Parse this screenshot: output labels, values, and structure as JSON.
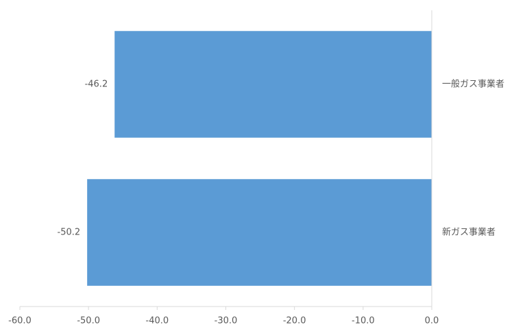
{
  "chart_data": {
    "type": "hbar",
    "categories": [
      "一般ガス事業者",
      "新ガス事業者"
    ],
    "values": [
      -46.2,
      -50.2
    ],
    "color": "#5b9bd5",
    "xlim": [
      -60,
      0
    ],
    "xticks": [
      {
        "value": -60,
        "label": "-60.0"
      },
      {
        "value": -50,
        "label": "-50.0"
      },
      {
        "value": -40,
        "label": "-40.0"
      },
      {
        "value": -30,
        "label": "-30.0"
      },
      {
        "value": -20,
        "label": "-20.0"
      },
      {
        "value": -10,
        "label": "-10.0"
      },
      {
        "value": 0,
        "label": "0.0"
      }
    ],
    "grid": false
  }
}
